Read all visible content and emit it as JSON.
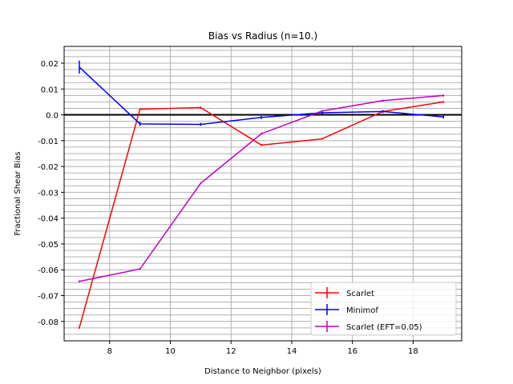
{
  "chart_data": {
    "type": "line",
    "title": "Bias vs Radius (n=10.)",
    "xlabel": "Distance to Neighbor (pixels)",
    "ylabel": "Fractional Shear Bias",
    "xlim": [
      6.5,
      19.6
    ],
    "ylim": [
      -0.0875,
      0.0265
    ],
    "x_ticks": [
      8,
      10,
      12,
      14,
      16,
      18
    ],
    "y_ticks": [
      0.02,
      0.01,
      0.0,
      -0.01,
      -0.02,
      -0.03,
      -0.04,
      -0.05,
      -0.06,
      -0.07,
      -0.08
    ],
    "x_tick_labels": [
      "8",
      "10",
      "12",
      "14",
      "16",
      "18"
    ],
    "y_tick_labels": [
      "0.02",
      "0.01",
      "0.0",
      "-0.01",
      "-0.02",
      "-0.03",
      "-0.04",
      "-0.05",
      "-0.06",
      "-0.07",
      "-0.08"
    ],
    "grid": true,
    "reference_line_y": 0.0,
    "legend_position": "lower-right",
    "series": [
      {
        "name": "Scarlet",
        "color": "#ff0000",
        "x": [
          7,
          9,
          11,
          13,
          15,
          17,
          19
        ],
        "y": [
          -0.0825,
          0.0022,
          0.0028,
          -0.0117,
          -0.0093,
          0.0013,
          0.005
        ],
        "yerr": [
          0.0004,
          0.0004,
          0.0004,
          0.0004,
          0.0004,
          0.0004,
          0.0004
        ]
      },
      {
        "name": "Minimof",
        "color": "#0000ff",
        "x": [
          7,
          9,
          11,
          13,
          15,
          17,
          19
        ],
        "y": [
          0.0185,
          -0.0035,
          -0.0037,
          -0.001,
          0.0008,
          0.0013,
          -0.0008
        ],
        "yerr": [
          0.0025,
          0.0008,
          0.0006,
          0.0006,
          0.0005,
          0.0006,
          0.0006
        ]
      },
      {
        "name": "Scarlet (EFT=0.05)",
        "color": "#bf00bf",
        "x": [
          7,
          9,
          11,
          13,
          15,
          17,
          19
        ],
        "y": [
          -0.0645,
          -0.0597,
          -0.0265,
          -0.0073,
          0.0015,
          0.0055,
          0.0075
        ],
        "yerr": [
          0.0004,
          0.0004,
          0.0004,
          0.0004,
          0.0004,
          0.0004,
          0.0004
        ]
      }
    ]
  }
}
